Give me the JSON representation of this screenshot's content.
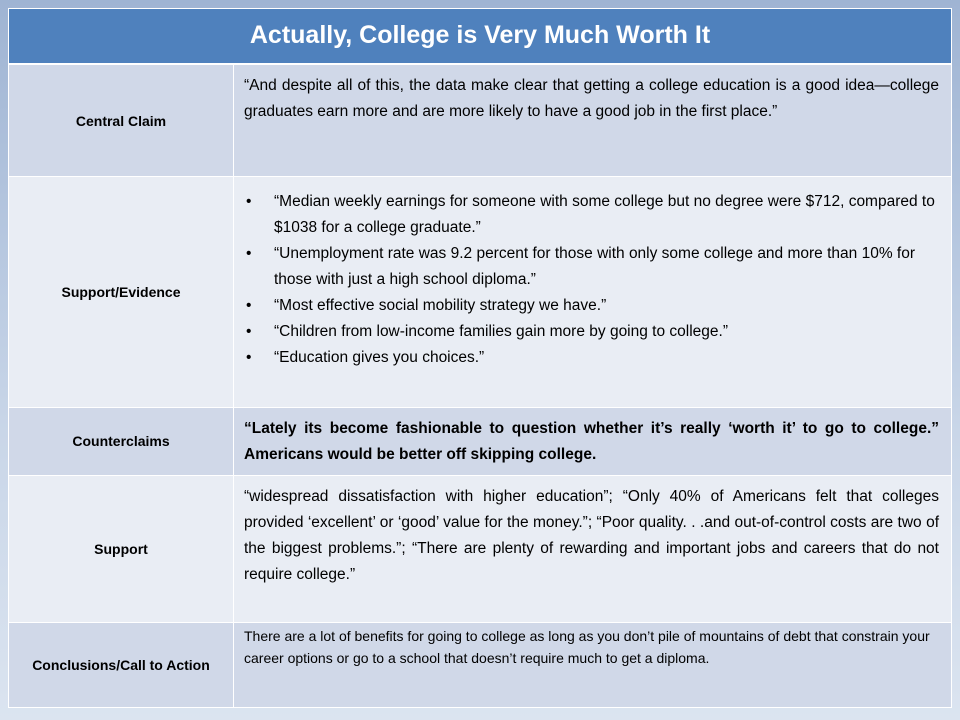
{
  "title": "Actually, College is Very Much Worth It",
  "rows": {
    "central_claim": {
      "label": "Central Claim",
      "text": "“And despite all of this, the data make clear that getting a college education is a good idea—college graduates earn more and are more likely to have a good job in the first place.”"
    },
    "support_evidence": {
      "label": "Support/Evidence",
      "bullets": [
        "“Median weekly earnings for someone with some college but no degree were $712, compared to $1038 for a college graduate.”",
        "“Unemployment rate was 9.2 percent for those with only some college and more than 10% for those with just a high school diploma.”",
        "“Most effective social mobility strategy we have.”",
        "“Children from low-income families gain more by going to college.”",
        "“Education gives you choices.”"
      ]
    },
    "counterclaims": {
      "label": "Counterclaims",
      "text": "“Lately its become fashionable to question whether it’s really ‘worth it’ to go to college.” Americans would be better off skipping college."
    },
    "support": {
      "label": "Support",
      "text": "“widespread dissatisfaction with higher education”; “Only 40% of Americans felt that colleges provided ‘excellent’ or ‘good’ value for the money.”; “Poor quality. . .and out-of-control costs are two of the biggest problems.”; “There are plenty of rewarding and important jobs and careers that do not require college.”"
    },
    "conclusions": {
      "label": "Conclusions/Call to Action",
      "text": "There are a lot of benefits for going to college as long as you don’t pile of mountains of debt that constrain your career options or go to a school that doesn’t require much to get a diploma."
    }
  }
}
